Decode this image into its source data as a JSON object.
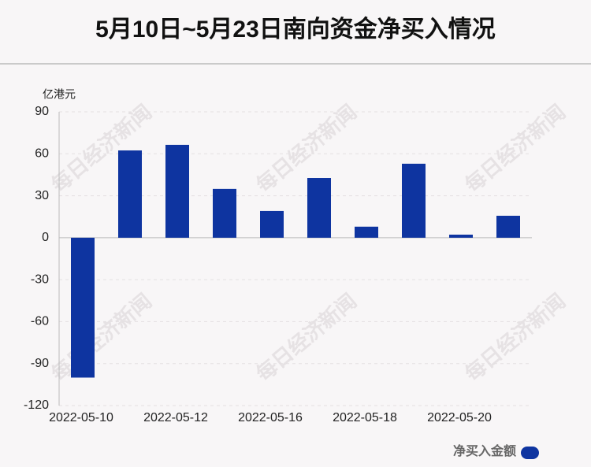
{
  "chart_data": {
    "type": "bar",
    "title": "5月10日~5月23日南向资金净买入情况",
    "y_axis_label": "亿港元",
    "categories": [
      "2022-05-10",
      null,
      "2022-05-12",
      null,
      "2022-05-16",
      null,
      "2022-05-18",
      null,
      "2022-05-20",
      null
    ],
    "series": [
      {
        "name": "净买入金额",
        "color": "#0e34a0",
        "values": [
          -100,
          62.4,
          66.4,
          34.9,
          19.1,
          42.7,
          7.9,
          52.9,
          2.2,
          15.7
        ]
      }
    ],
    "ylim": [
      -120,
      90
    ],
    "yticks": [
      -120,
      -90,
      -60,
      -30,
      0,
      30,
      60,
      90
    ],
    "grid": true,
    "watermark": "每日经济新闻"
  }
}
